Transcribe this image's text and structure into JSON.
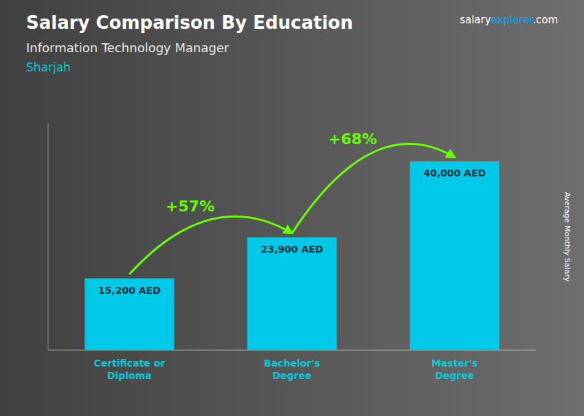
{
  "chart_data": {
    "type": "bar",
    "title": "Salary Comparison By Education",
    "subtitle": "Information Technology Manager",
    "location": "Sharjah",
    "source": "salaryexplorer.com",
    "ylabel": "Average Monthly Salary",
    "categories": [
      "Certificate or\nDiploma",
      "Bachelor's\nDegree",
      "Master's\nDegree"
    ],
    "values": [
      15200,
      23900,
      40000
    ],
    "value_labels": [
      "15,200 AED",
      "23,900 AED",
      "40,000 AED"
    ],
    "data_labels": true,
    "annotations": [
      "+57%",
      "+68%"
    ],
    "color": "#00c8e8",
    "ylim": [
      0,
      48000
    ],
    "tick_labels": "x",
    "grid": false
  }
}
